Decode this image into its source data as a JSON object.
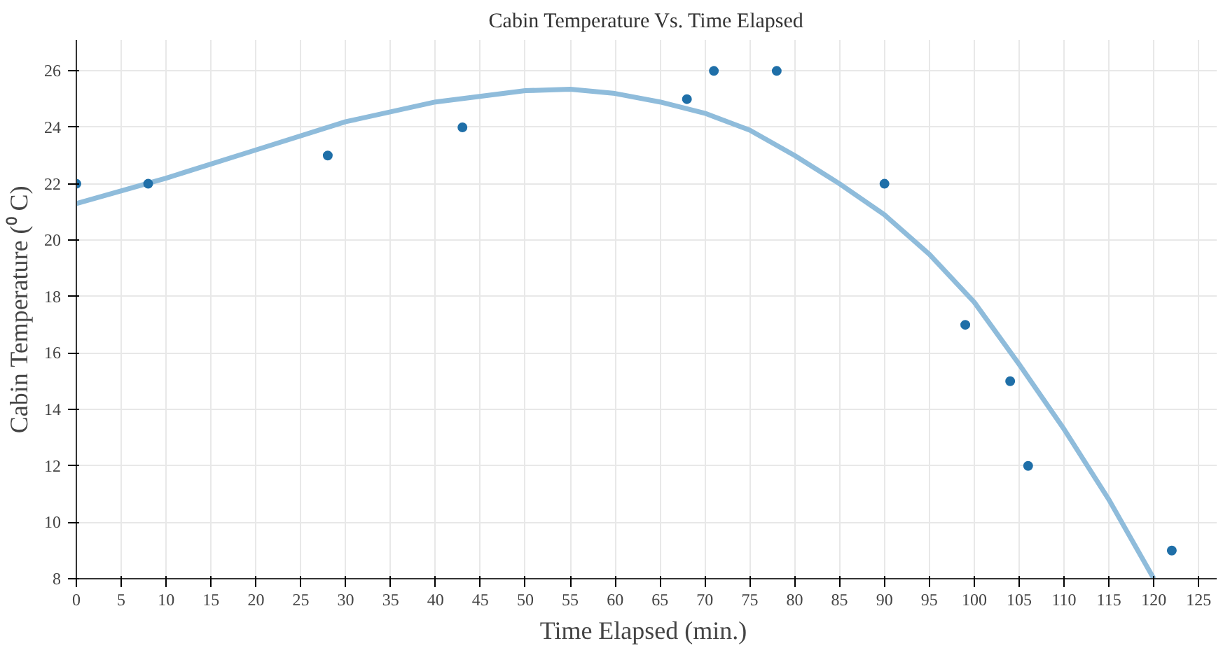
{
  "chart_data": {
    "type": "scatter",
    "title": "Cabin Temperature Vs. Time Elapsed",
    "xlabel": "Time Elapsed  (min.)",
    "ylabel": "Cabin Temperature (⁰ C)",
    "xlim": [
      0,
      127
    ],
    "ylim": [
      8,
      27.1
    ],
    "xticks": [
      0,
      5,
      10,
      15,
      20,
      25,
      30,
      35,
      40,
      45,
      50,
      55,
      60,
      65,
      70,
      75,
      80,
      85,
      90,
      95,
      100,
      105,
      110,
      115,
      120,
      125
    ],
    "yticks": [
      8,
      10,
      12,
      14,
      16,
      18,
      20,
      22,
      24,
      26
    ],
    "grid": true,
    "series": [
      {
        "type": "line",
        "color": "#8fbcdb",
        "marker": "none",
        "x": [
          0,
          10,
          20,
          30,
          40,
          50,
          55,
          60,
          65,
          70,
          75,
          80,
          85,
          90,
          95,
          100,
          105,
          110,
          115,
          120
        ],
        "values": [
          21.3,
          22.2,
          23.2,
          24.2,
          24.9,
          25.3,
          25.35,
          25.2,
          24.9,
          24.5,
          23.9,
          23.0,
          22.0,
          20.9,
          19.5,
          17.8,
          15.6,
          13.3,
          10.8,
          8.0
        ]
      },
      {
        "color": "#1f6fa8",
        "marker": "circle",
        "x": [
          0,
          8,
          28,
          43,
          68,
          71,
          78,
          90,
          99,
          104,
          106,
          122
        ],
        "values": [
          22,
          22,
          23,
          24,
          25,
          26,
          26,
          22,
          17,
          15,
          12,
          9
        ]
      }
    ]
  }
}
